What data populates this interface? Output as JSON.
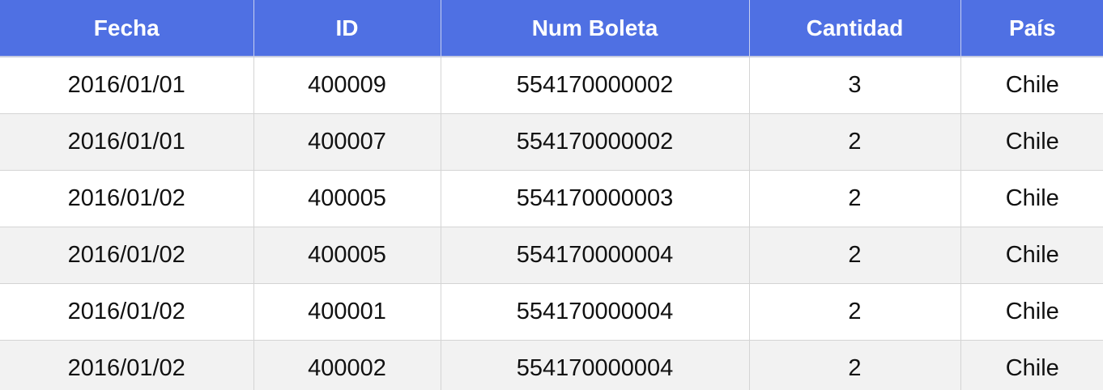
{
  "table": {
    "headers": [
      "Fecha",
      "ID",
      "Num Boleta",
      "Cantidad",
      "País"
    ],
    "rows": [
      [
        "2016/01/01",
        "400009",
        "554170000002",
        "3",
        "Chile"
      ],
      [
        "2016/01/01",
        "400007",
        "554170000002",
        "2",
        "Chile"
      ],
      [
        "2016/01/02",
        "400005",
        "554170000003",
        "2",
        "Chile"
      ],
      [
        "2016/01/02",
        "400005",
        "554170000004",
        "2",
        "Chile"
      ],
      [
        "2016/01/02",
        "400001",
        "554170000004",
        "2",
        "Chile"
      ],
      [
        "2016/01/02",
        "400002",
        "554170000004",
        "2",
        "Chile"
      ]
    ]
  },
  "colors": {
    "header_background": "#4f70e3",
    "header_text": "#ffffff",
    "row_stripe": "#f2f2f2"
  }
}
